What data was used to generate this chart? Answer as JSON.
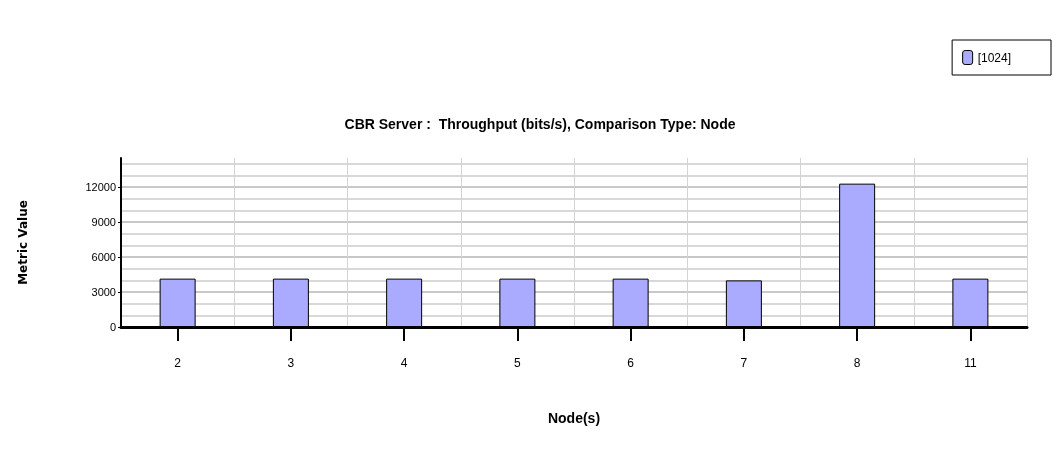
{
  "chart_data": {
    "type": "bar",
    "title": "CBR Server :  Throughput (bits/s), Comparison Type: Node",
    "xlabel": "Node(s)",
    "ylabel": "Metric Value",
    "categories": [
      "2",
      "3",
      "4",
      "5",
      "6",
      "7",
      "8",
      "11"
    ],
    "series": [
      {
        "name": "[1024]",
        "color": "#aaaaff",
        "values": [
          4150,
          4150,
          4150,
          4150,
          4150,
          4000,
          12300,
          4150
        ]
      }
    ],
    "ylim": [
      0,
      14500
    ],
    "yticks": [
      0,
      3000,
      6000,
      9000,
      12000
    ],
    "grid": true,
    "legend": "top right"
  }
}
